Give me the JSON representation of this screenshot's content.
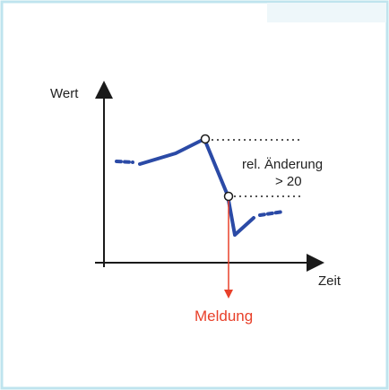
{
  "diagram": {
    "y_axis_label": "Wert",
    "x_axis_label": "Zeit",
    "annotation_line1": "rel. Änderung",
    "annotation_line2": "> 20",
    "alert_label": "Meldung",
    "colors": {
      "border": "#bfe4ee",
      "signal": "#2b4aa6",
      "axis": "#1a1a1a",
      "dotted": "#555555",
      "alert": "#e8402a"
    }
  }
}
